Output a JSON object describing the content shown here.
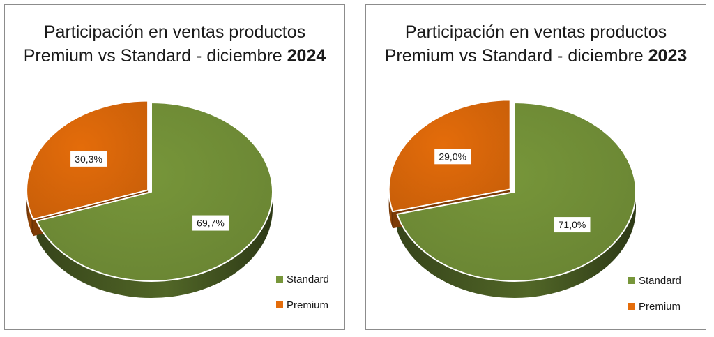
{
  "chart_data": [
    {
      "type": "pie",
      "title_line1": "Participación en ventas productos",
      "title_line2_prefix": "Premium vs Standard - diciembre ",
      "title_year": "2024",
      "slices": [
        {
          "name": "Standard",
          "value": 69.7,
          "label": "69,7%",
          "color": "#77963a"
        },
        {
          "name": "Premium",
          "value": 30.3,
          "label": "30,3%",
          "color": "#e46c0a"
        }
      ],
      "legend": [
        "Standard",
        "Premium"
      ],
      "legend_position": "bottom-right"
    },
    {
      "type": "pie",
      "title_line1": "Participación en ventas productos",
      "title_line2_prefix": "Premium vs Standard - diciembre ",
      "title_year": "2023",
      "slices": [
        {
          "name": "Standard",
          "value": 71.0,
          "label": "71,0%",
          "color": "#77963a"
        },
        {
          "name": "Premium",
          "value": 29.0,
          "label": "29,0%",
          "color": "#e46c0a"
        }
      ],
      "legend": [
        "Standard",
        "Premium"
      ],
      "legend_position": "bottom-right"
    }
  ]
}
